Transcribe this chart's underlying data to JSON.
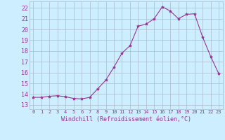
{
  "x": [
    0,
    1,
    2,
    3,
    4,
    5,
    6,
    7,
    8,
    9,
    10,
    11,
    12,
    13,
    14,
    15,
    16,
    17,
    18,
    19,
    20,
    21,
    22,
    23
  ],
  "y": [
    13.7,
    13.7,
    13.8,
    13.85,
    13.75,
    13.6,
    13.55,
    13.7,
    14.5,
    15.3,
    16.5,
    17.8,
    18.5,
    20.3,
    20.5,
    21.0,
    22.1,
    21.7,
    21.0,
    21.4,
    21.45,
    19.3,
    17.5,
    15.9
  ],
  "line_color": "#993399",
  "marker": "*",
  "marker_size": 3,
  "bg_color": "#cceeff",
  "grid_color": "#aabbcc",
  "xlabel": "Windchill (Refroidissement éolien,°C)",
  "yticks": [
    13,
    14,
    15,
    16,
    17,
    18,
    19,
    20,
    21,
    22
  ],
  "ylim": [
    12.6,
    22.6
  ],
  "xlim": [
    -0.5,
    23.5
  ],
  "tick_color": "#993399",
  "label_color": "#993399",
  "xlabel_fontsize": 6,
  "ytick_fontsize": 6,
  "xtick_fontsize": 5
}
